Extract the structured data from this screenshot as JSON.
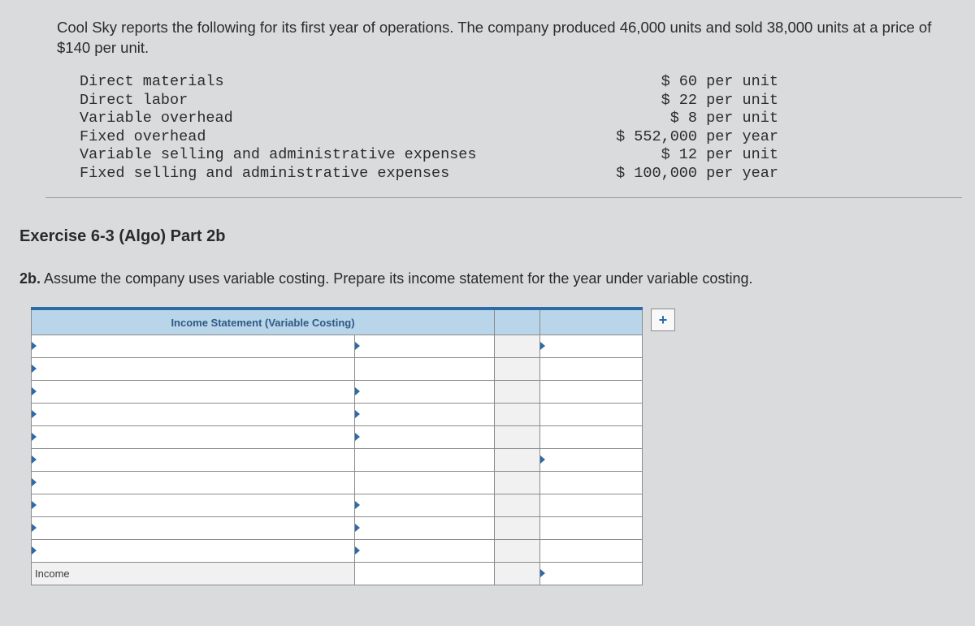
{
  "problem": {
    "intro": "Cool Sky reports the following for its first year of operations. The company produced 46,000 units and sold 38,000 units at a price of $140 per unit.",
    "rows": [
      {
        "label": "Direct materials",
        "value": "$ 60",
        "unit": " per unit"
      },
      {
        "label": "Direct labor",
        "value": "$ 22",
        "unit": " per unit"
      },
      {
        "label": "Variable overhead",
        "value": "$ 8",
        "unit": " per unit"
      },
      {
        "label": "Fixed overhead",
        "value": "$ 552,000",
        "unit": " per year"
      },
      {
        "label": "Variable selling and administrative expenses",
        "value": "$ 12",
        "unit": " per unit"
      },
      {
        "label": "Fixed selling and administrative expenses",
        "value": "$ 100,000",
        "unit": " per year"
      }
    ]
  },
  "exercise_title": "Exercise 6-3 (Algo) Part 2b",
  "prompt_num": "2b.",
  "prompt_text": " Assume the company uses variable costing. Prepare its income statement for the year under variable costing.",
  "income_header": "Income Statement (Variable Costing)",
  "add_label": "+",
  "footer_row_label": "Income",
  "colors": {
    "bg": "#d9dbdc",
    "header_bg": "#b8d5e9",
    "header_border_top": "#2f6aa8",
    "header_text": "#2f5a85",
    "cell_border": "#8b8b8b",
    "spacer_bg": "#f1f1f1",
    "picker_arrow": "#2f6aa8"
  }
}
